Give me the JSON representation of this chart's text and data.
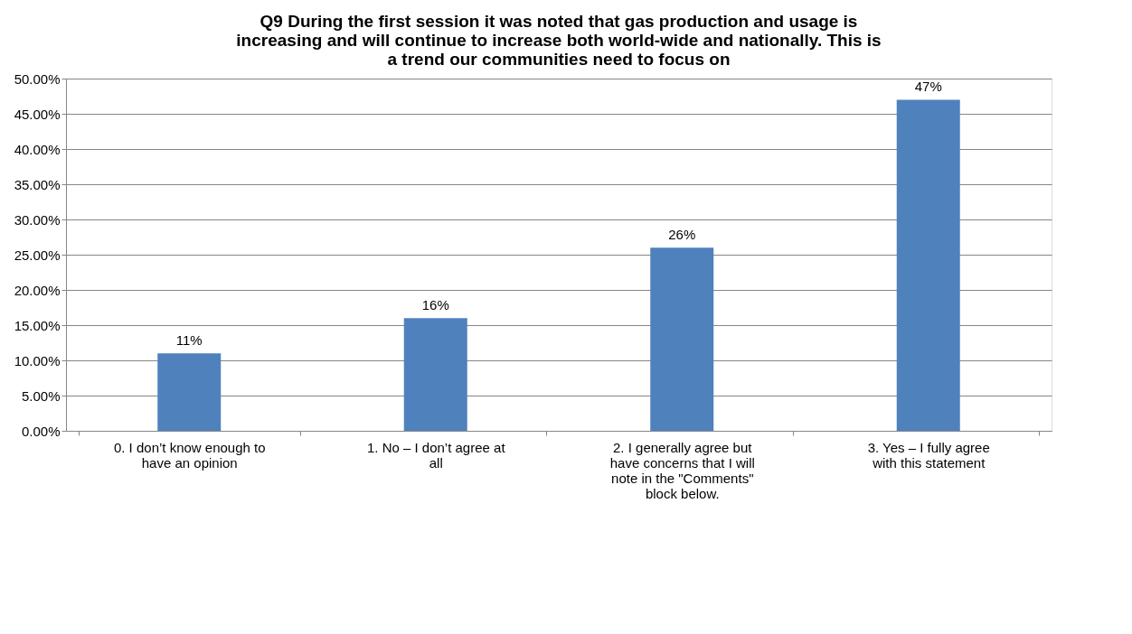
{
  "chart_data": {
    "type": "bar",
    "title": "Q9 During the first session it was noted that gas production and usage is increasing and will continue to increase both world-wide and nationally. This is a trend our communities need to focus on",
    "categories": [
      "0. I don’t know enough to have an opinion",
      "1. No – I don’t agree at all",
      "2. I generally agree but have concerns that I will note in the \"Comments\" block below.",
      "3. Yes – I fully agree with this statement"
    ],
    "values": [
      11,
      16,
      26,
      47
    ],
    "value_labels": [
      "11%",
      "16%",
      "26%",
      "47%"
    ],
    "color": "#4f81bd",
    "ylim": [
      0,
      50
    ],
    "yticks": [
      {
        "value": 0,
        "label": "0.00%"
      },
      {
        "value": 5,
        "label": "5.00%"
      },
      {
        "value": 10,
        "label": "10.00%"
      },
      {
        "value": 15,
        "label": "15.00%"
      },
      {
        "value": 20,
        "label": "20.00%"
      },
      {
        "value": 25,
        "label": "25.00%"
      },
      {
        "value": 30,
        "label": "30.00%"
      },
      {
        "value": 35,
        "label": "35.00%"
      },
      {
        "value": 40,
        "label": "40.00%"
      },
      {
        "value": 45,
        "label": "45.00%"
      },
      {
        "value": 50,
        "label": "50.00%"
      }
    ],
    "grid": "y"
  }
}
